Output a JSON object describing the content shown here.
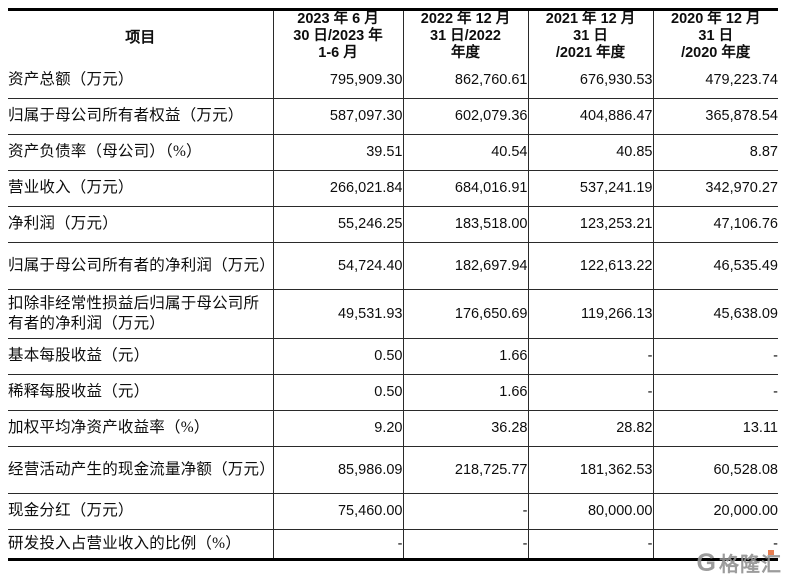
{
  "table": {
    "header": {
      "item_col": "项目",
      "periods": [
        "2023 年 6 月\n30 日/2023 年\n1-6 月",
        "2022 年 12 月\n31 日/2022\n年度",
        "2021 年 12 月\n31 日\n/2021 年度",
        "2020 年 12 月\n31 日\n/2020 年度"
      ]
    },
    "rows": [
      {
        "label": "资产总额（万元）",
        "values": [
          "795,909.30",
          "862,760.61",
          "676,930.53",
          "479,223.74"
        ]
      },
      {
        "label": "归属于母公司所有者权益（万元）",
        "values": [
          "587,097.30",
          "602,079.36",
          "404,886.47",
          "365,878.54"
        ]
      },
      {
        "label": "资产负债率（母公司）（%）",
        "values": [
          "39.51",
          "40.54",
          "40.85",
          "8.87"
        ]
      },
      {
        "label": "营业收入（万元）",
        "values": [
          "266,021.84",
          "684,016.91",
          "537,241.19",
          "342,970.27"
        ]
      },
      {
        "label": "净利润（万元）",
        "values": [
          "55,246.25",
          "183,518.00",
          "123,253.21",
          "47,106.76"
        ]
      },
      {
        "label": "归属于母公司所有者的净利润（万元）",
        "values": [
          "54,724.40",
          "182,697.94",
          "122,613.22",
          "46,535.49"
        ]
      },
      {
        "label": "扣除非经常性损益后归属于母公司所有者的净利润（万元）",
        "values": [
          "49,531.93",
          "176,650.69",
          "119,266.13",
          "45,638.09"
        ]
      },
      {
        "label": "基本每股收益（元）",
        "values": [
          "0.50",
          "1.66",
          "-",
          "-"
        ]
      },
      {
        "label": "稀释每股收益（元）",
        "values": [
          "0.50",
          "1.66",
          "-",
          "-"
        ]
      },
      {
        "label": "加权平均净资产收益率（%）",
        "values": [
          "9.20",
          "36.28",
          "28.82",
          "13.11"
        ]
      },
      {
        "label": "经营活动产生的现金流量净额（万元）",
        "values": [
          "85,986.09",
          "218,725.77",
          "181,362.53",
          "60,528.08"
        ]
      },
      {
        "label": "现金分红（万元）",
        "values": [
          "75,460.00",
          "-",
          "80,000.00",
          "20,000.00"
        ]
      },
      {
        "label": "研发投入占营业收入的比例（%）",
        "values": [
          "-",
          "-",
          "-",
          "-"
        ]
      }
    ]
  },
  "watermark": {
    "logo_letter": "G",
    "brand": "格隆汇",
    "accent_color": "#e2622a",
    "text_color": "#929292"
  }
}
